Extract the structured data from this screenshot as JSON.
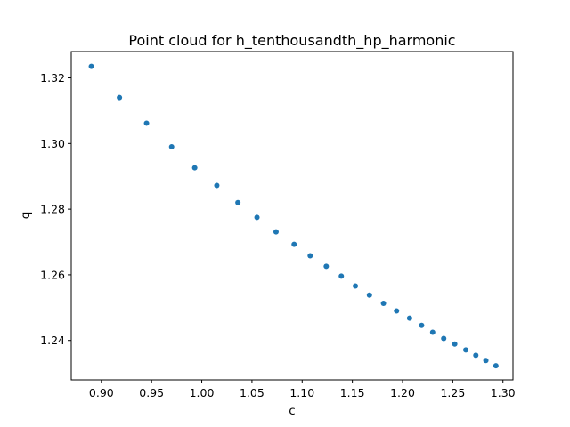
{
  "chart_data": {
    "type": "scatter",
    "title": "Point cloud for h_tenthousandth_hp_harmonic",
    "xlabel": "c",
    "ylabel": "q",
    "xlim": [
      0.87,
      1.31
    ],
    "ylim": [
      1.228,
      1.328
    ],
    "grid": false,
    "marker_color": "#1f77b4",
    "x_ticks": [
      {
        "value": 0.9,
        "label": "0.90"
      },
      {
        "value": 0.95,
        "label": "0.95"
      },
      {
        "value": 1.0,
        "label": "1.00"
      },
      {
        "value": 1.05,
        "label": "1.05"
      },
      {
        "value": 1.1,
        "label": "1.10"
      },
      {
        "value": 1.15,
        "label": "1.15"
      },
      {
        "value": 1.2,
        "label": "1.20"
      },
      {
        "value": 1.25,
        "label": "1.25"
      },
      {
        "value": 1.3,
        "label": "1.30"
      }
    ],
    "y_ticks": [
      {
        "value": 1.24,
        "label": "1.24"
      },
      {
        "value": 1.26,
        "label": "1.26"
      },
      {
        "value": 1.28,
        "label": "1.28"
      },
      {
        "value": 1.3,
        "label": "1.30"
      },
      {
        "value": 1.32,
        "label": "1.32"
      }
    ],
    "points": [
      {
        "x": 0.89,
        "y": 1.3235
      },
      {
        "x": 0.918,
        "y": 1.314
      },
      {
        "x": 0.945,
        "y": 1.3062
      },
      {
        "x": 0.97,
        "y": 1.299
      },
      {
        "x": 0.993,
        "y": 1.2926
      },
      {
        "x": 1.015,
        "y": 1.2872
      },
      {
        "x": 1.036,
        "y": 1.282
      },
      {
        "x": 1.055,
        "y": 1.2775
      },
      {
        "x": 1.074,
        "y": 1.2731
      },
      {
        "x": 1.092,
        "y": 1.2693
      },
      {
        "x": 1.108,
        "y": 1.2658
      },
      {
        "x": 1.124,
        "y": 1.2626
      },
      {
        "x": 1.139,
        "y": 1.2596
      },
      {
        "x": 1.153,
        "y": 1.2566
      },
      {
        "x": 1.167,
        "y": 1.2538
      },
      {
        "x": 1.181,
        "y": 1.2513
      },
      {
        "x": 1.194,
        "y": 1.249
      },
      {
        "x": 1.207,
        "y": 1.2468
      },
      {
        "x": 1.219,
        "y": 1.2446
      },
      {
        "x": 1.23,
        "y": 1.2425
      },
      {
        "x": 1.241,
        "y": 1.2406
      },
      {
        "x": 1.252,
        "y": 1.2389
      },
      {
        "x": 1.263,
        "y": 1.2371
      },
      {
        "x": 1.273,
        "y": 1.2355
      },
      {
        "x": 1.283,
        "y": 1.2339
      },
      {
        "x": 1.293,
        "y": 1.2323
      }
    ]
  }
}
